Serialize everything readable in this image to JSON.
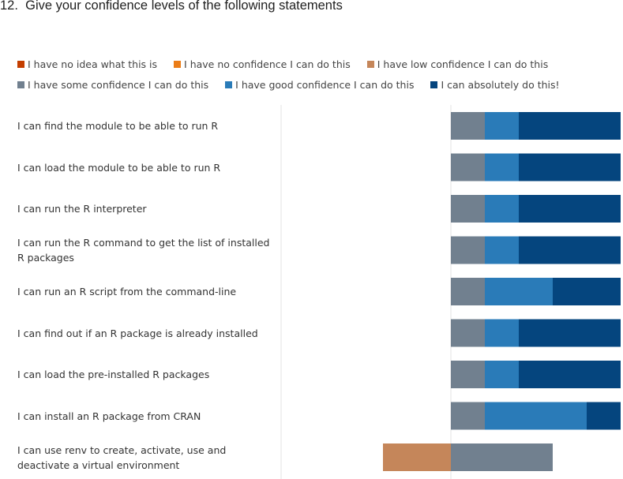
{
  "question": {
    "number": "12.",
    "title": "Give your confidence levels of the following statements"
  },
  "chart_data": {
    "type": "bar",
    "stacked": true,
    "orientation": "horizontal",
    "diverging": true,
    "legend_placement": "top",
    "grid": false,
    "legend": [
      {
        "name": "I have no idea what this is",
        "color": "#c43e00"
      },
      {
        "name": "I have no confidence I can do this",
        "color": "#eb7d18"
      },
      {
        "name": "I have low confidence I can do this",
        "color": "#c5865a"
      },
      {
        "name": "I have some confidence I can do this",
        "color": "#71808f"
      },
      {
        "name": "I have good confidence I can do this",
        "color": "#2a7bb8"
      },
      {
        "name": "I can absolutely do this!",
        "color": "#05457e"
      }
    ],
    "categories": [
      "I can find the module to be able to run R",
      "I can load the module to be able to run R",
      "I can run the R interpreter",
      "I can run the R command to get the list of installed R packages",
      "I can run an R script from the command-line",
      "I can find out if an R package is already installed",
      "I can load the pre-installed R packages",
      "I can install an R package from CRAN",
      "I can use renv to create, activate, use and deactivate a virtual environment"
    ],
    "series": [
      {
        "name": "I have no idea what this is",
        "values": [
          0,
          0,
          0,
          0,
          0,
          0,
          0,
          0,
          0
        ]
      },
      {
        "name": "I have no confidence I can do this",
        "values": [
          0,
          0,
          0,
          0,
          0,
          0,
          0,
          0,
          0
        ]
      },
      {
        "name": "I have low confidence I can do this",
        "values": [
          0,
          0,
          0,
          0,
          0,
          0,
          0,
          0,
          2
        ]
      },
      {
        "name": "I have some confidence I can do this",
        "values": [
          1,
          1,
          1,
          1,
          1,
          1,
          1,
          1,
          3
        ]
      },
      {
        "name": "I have good confidence I can do this",
        "values": [
          1,
          1,
          1,
          1,
          2,
          1,
          1,
          3,
          0
        ]
      },
      {
        "name": "I can absolutely do this!",
        "values": [
          3,
          3,
          3,
          3,
          2,
          3,
          3,
          1,
          0
        ]
      }
    ]
  }
}
